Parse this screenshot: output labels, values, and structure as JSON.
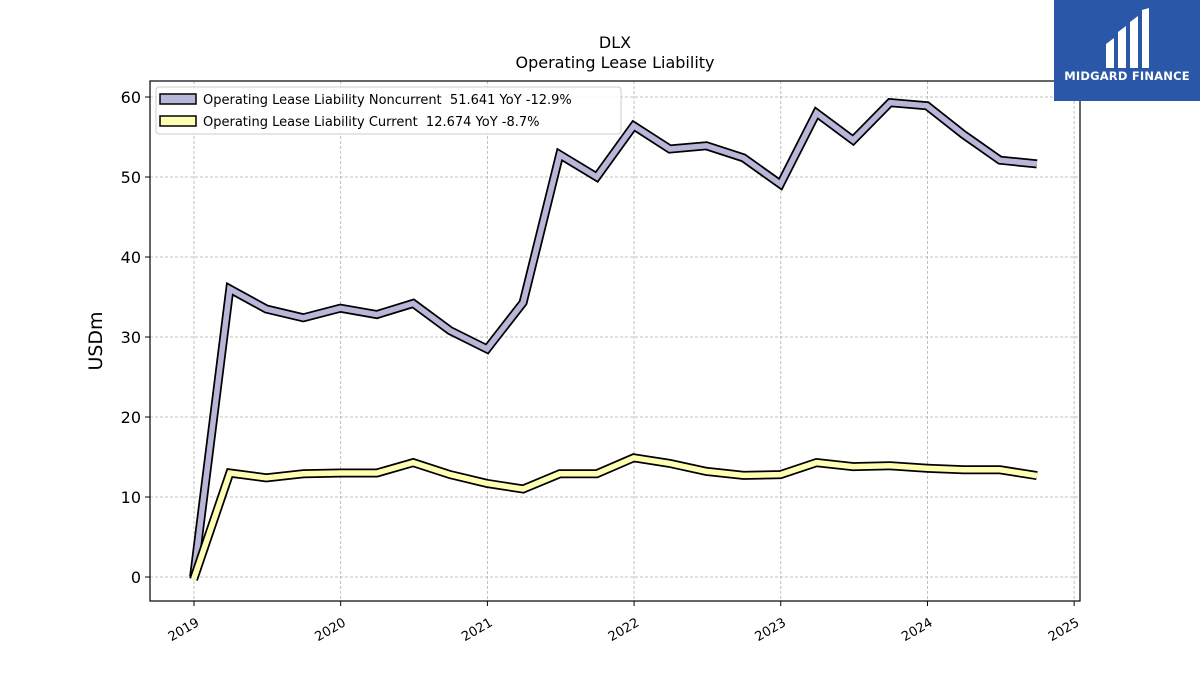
{
  "logo": {
    "text": "MIDGARD FINANCE",
    "background": "#2b57a8"
  },
  "chart_data": {
    "type": "line",
    "title": "DLX",
    "subtitle": "Operating Lease Liability",
    "ylabel": "USDm",
    "xlabel": "",
    "ylim": [
      -3,
      62
    ],
    "xlim": [
      2018.7,
      2025.04
    ],
    "yticks": [
      0,
      10,
      20,
      30,
      40,
      50,
      60
    ],
    "xticks": [
      "2019",
      "2020",
      "2021",
      "2022",
      "2023",
      "2024",
      "2025"
    ],
    "grid": true,
    "legend_position": "top-left",
    "x": [
      "2018-12-31",
      "2019-03-31",
      "2019-06-30",
      "2019-09-30",
      "2019-12-31",
      "2020-03-31",
      "2020-06-30",
      "2020-09-30",
      "2020-12-31",
      "2021-03-31",
      "2021-06-30",
      "2021-09-30",
      "2021-12-31",
      "2022-03-31",
      "2022-06-30",
      "2022-09-30",
      "2022-12-31",
      "2023-03-31",
      "2023-06-30",
      "2023-09-30",
      "2023-12-31",
      "2024-03-31",
      "2024-06-30",
      "2024-09-30"
    ],
    "series": [
      {
        "name": "Operating Lease Liability Noncurrent",
        "legend_label": "Operating Lease Liability Noncurrent  51.641 YoY -12.9%",
        "color": "#b9b7d9",
        "values": [
          0,
          36,
          33.5,
          32.4,
          33.6,
          32.8,
          34.2,
          30.8,
          28.5,
          34.3,
          52.8,
          50,
          56.4,
          53.5,
          53.9,
          52.4,
          49.1,
          58,
          54.6,
          59.3,
          58.9,
          55.3,
          52.1,
          51.641
        ]
      },
      {
        "name": "Operating Lease Liability Current",
        "legend_label": "Operating Lease Liability Current  12.674 YoY -8.7%",
        "color": "#ffffb3",
        "values": [
          -0.3,
          13,
          12.4,
          12.9,
          13,
          13,
          14.3,
          12.8,
          11.7,
          11,
          12.9,
          12.9,
          14.9,
          14.2,
          13.2,
          12.7,
          12.8,
          14.3,
          13.8,
          13.9,
          13.6,
          13.4,
          13.4,
          12.674
        ]
      }
    ]
  }
}
